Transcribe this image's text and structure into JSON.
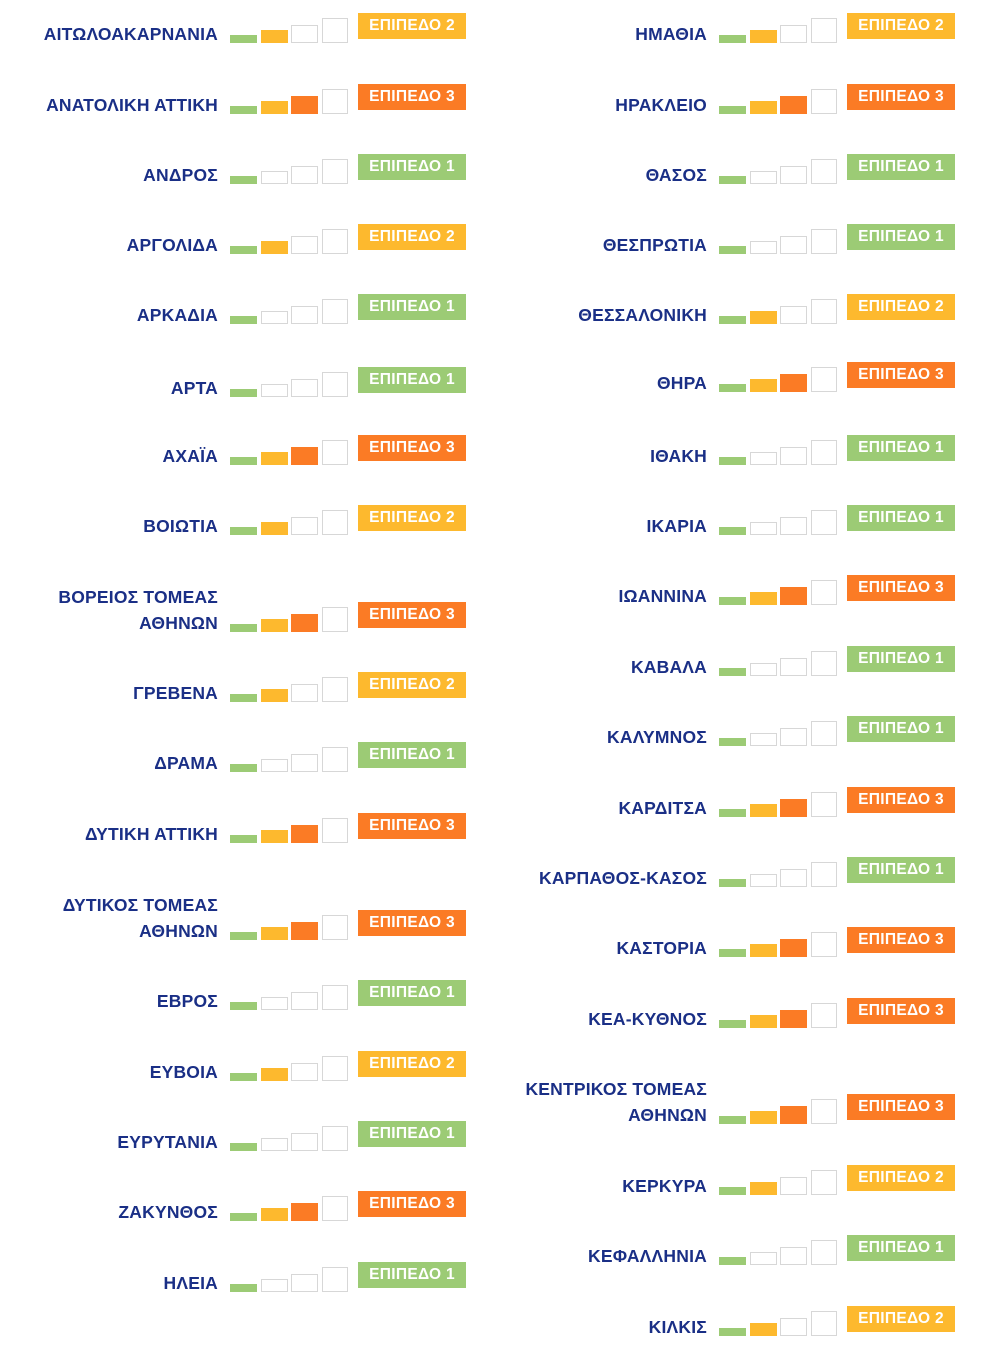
{
  "colors": {
    "level_1": "#9ccb75",
    "level_2": "#fdb92e",
    "level_3": "#fb7b25",
    "empty_border": "#d7d7d7",
    "name_text": "#1a2f86"
  },
  "left_column": [
    {
      "name": "ΑΙΤΩΛΟΑΚΑΡΝΑΝΙΑ",
      "level": 2,
      "badge": "ΕΠΙΠΕΔΟ 2"
    },
    {
      "name": "ΑΝΑΤΟΛΙΚΗ ΑΤΤΙΚΗ",
      "level": 3,
      "badge": "ΕΠΙΠΕΔΟ 3"
    },
    {
      "name": "ΑΝΔΡΟΣ",
      "level": 1,
      "badge": "ΕΠΙΠΕΔΟ 1"
    },
    {
      "name": "ΑΡΓΟΛΙΔΑ",
      "level": 2,
      "badge": "ΕΠΙΠΕΔΟ 2"
    },
    {
      "name": "ΑΡΚΑΔΙΑ",
      "level": 1,
      "badge": "ΕΠΙΠΕΔΟ 1"
    },
    {
      "name": "ΑΡΤΑ",
      "level": 1,
      "badge": "ΕΠΙΠΕΔΟ 1"
    },
    {
      "name": "ΑΧΑΪΑ",
      "level": 3,
      "badge": "ΕΠΙΠΕΔΟ 3"
    },
    {
      "name": "ΒΟΙΩΤΙΑ",
      "level": 2,
      "badge": "ΕΠΙΠΕΔΟ 2"
    },
    {
      "name": "ΒΟΡΕΙΟΣ ΤΟΜΕΑΣ ΑΘΗΝΩΝ",
      "level": 3,
      "badge": "ΕΠΙΠΕΔΟ 3"
    },
    {
      "name": "ΓΡΕΒΕΝΑ",
      "level": 2,
      "badge": "ΕΠΙΠΕΔΟ 2"
    },
    {
      "name": "ΔΡΑΜΑ",
      "level": 1,
      "badge": "ΕΠΙΠΕΔΟ 1"
    },
    {
      "name": "ΔΥΤΙΚΗ ΑΤΤΙΚΗ",
      "level": 3,
      "badge": "ΕΠΙΠΕΔΟ 3"
    },
    {
      "name": "ΔΥΤΙΚΟΣ ΤΟΜΕΑΣ ΑΘΗΝΩΝ",
      "level": 3,
      "badge": "ΕΠΙΠΕΔΟ 3"
    },
    {
      "name": "ΕΒΡΟΣ",
      "level": 1,
      "badge": "ΕΠΙΠΕΔΟ 1"
    },
    {
      "name": "ΕΥΒΟΙΑ",
      "level": 2,
      "badge": "ΕΠΙΠΕΔΟ 2"
    },
    {
      "name": "ΕΥΡΥΤΑΝΙΑ",
      "level": 1,
      "badge": "ΕΠΙΠΕΔΟ 1"
    },
    {
      "name": "ΖΑΚΥΝΘΟΣ",
      "level": 3,
      "badge": "ΕΠΙΠΕΔΟ 3"
    },
    {
      "name": "ΗΛΕΙΑ",
      "level": 1,
      "badge": "ΕΠΙΠΕΔΟ 1"
    }
  ],
  "right_column": [
    {
      "name": "ΗΜΑΘΙΑ",
      "level": 2,
      "badge": "ΕΠΙΠΕΔΟ 2"
    },
    {
      "name": "ΗΡΑΚΛΕΙΟ",
      "level": 3,
      "badge": "ΕΠΙΠΕΔΟ 3"
    },
    {
      "name": "ΘΑΣΟΣ",
      "level": 1,
      "badge": "ΕΠΙΠΕΔΟ 1"
    },
    {
      "name": "ΘΕΣΠΡΩΤΙΑ",
      "level": 1,
      "badge": "ΕΠΙΠΕΔΟ 1"
    },
    {
      "name": "ΘΕΣΣΑΛΟΝΙΚΗ",
      "level": 2,
      "badge": "ΕΠΙΠΕΔΟ 2"
    },
    {
      "name": "ΘΗΡΑ",
      "level": 3,
      "badge": "ΕΠΙΠΕΔΟ 3"
    },
    {
      "name": "ΙΘΑΚΗ",
      "level": 1,
      "badge": "ΕΠΙΠΕΔΟ 1"
    },
    {
      "name": "ΙΚΑΡΙΑ",
      "level": 1,
      "badge": "ΕΠΙΠΕΔΟ 1"
    },
    {
      "name": "ΙΩΑΝΝΙΝΑ",
      "level": 3,
      "badge": "ΕΠΙΠΕΔΟ 3"
    },
    {
      "name": "ΚΑΒΑΛΑ",
      "level": 1,
      "badge": "ΕΠΙΠΕΔΟ 1"
    },
    {
      "name": "ΚΑΛΥΜΝΟΣ",
      "level": 1,
      "badge": "ΕΠΙΠΕΔΟ 1"
    },
    {
      "name": "ΚΑΡΔΙΤΣΑ",
      "level": 3,
      "badge": "ΕΠΙΠΕΔΟ 3"
    },
    {
      "name": "ΚΑΡΠΑΘΟΣ-ΚΑΣΟΣ",
      "level": 1,
      "badge": "ΕΠΙΠΕΔΟ 1"
    },
    {
      "name": "ΚΑΣΤΟΡΙΑ",
      "level": 3,
      "badge": "ΕΠΙΠΕΔΟ 3"
    },
    {
      "name": "ΚΕΑ-ΚΥΘΝΟΣ",
      "level": 3,
      "badge": "ΕΠΙΠΕΔΟ 3"
    },
    {
      "name": "ΚΕΝΤΡΙΚΟΣ ΤΟΜΕΑΣ ΑΘΗΝΩΝ",
      "level": 3,
      "badge": "ΕΠΙΠΕΔΟ 3"
    },
    {
      "name": "ΚΕΡΚΥΡΑ",
      "level": 2,
      "badge": "ΕΠΙΠΕΔΟ 2"
    },
    {
      "name": "ΚΕΦΑΛΛΗΝΙΑ",
      "level": 1,
      "badge": "ΕΠΙΠΕΔΟ 1"
    },
    {
      "name": "ΚΙΛΚΙΣ",
      "level": 2,
      "badge": "ΕΠΙΠΕΔΟ 2"
    }
  ]
}
